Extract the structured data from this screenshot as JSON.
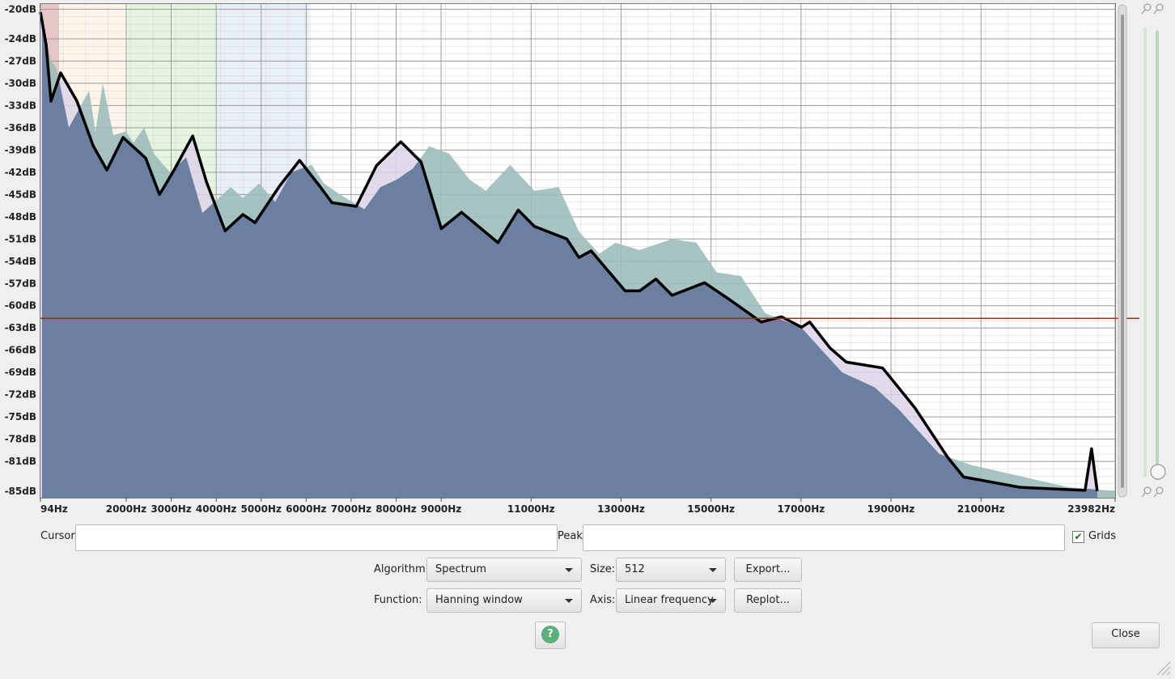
{
  "chart_data": {
    "type": "area",
    "xlim": [
      94,
      23982
    ],
    "ylim": [
      -85.9,
      -19.2
    ],
    "grid": true,
    "xticks": [
      {
        "value": 94,
        "label": "94Hz"
      },
      {
        "value": 2000,
        "label": "2000Hz"
      },
      {
        "value": 3000,
        "label": "3000Hz"
      },
      {
        "value": 4000,
        "label": "4000Hz"
      },
      {
        "value": 5000,
        "label": "5000Hz"
      },
      {
        "value": 6000,
        "label": "6000Hz"
      },
      {
        "value": 7000,
        "label": "7000Hz"
      },
      {
        "value": 8000,
        "label": "8000Hz"
      },
      {
        "value": 9000,
        "label": "9000Hz"
      },
      {
        "value": 11000,
        "label": "11000Hz"
      },
      {
        "value": 13000,
        "label": "13000Hz"
      },
      {
        "value": 15000,
        "label": "15000Hz"
      },
      {
        "value": 17000,
        "label": "17000Hz"
      },
      {
        "value": 19000,
        "label": "19000Hz"
      },
      {
        "value": 21000,
        "label": "21000Hz"
      },
      {
        "value": 23982,
        "label": "23982Hz"
      }
    ],
    "yticks": [
      {
        "value": -20,
        "label": "-20dB"
      },
      {
        "value": -24,
        "label": "-24dB"
      },
      {
        "value": -27,
        "label": "-27dB"
      },
      {
        "value": -30,
        "label": "-30dB"
      },
      {
        "value": -33,
        "label": "-33dB"
      },
      {
        "value": -36,
        "label": "-36dB"
      },
      {
        "value": -39,
        "label": "-39dB"
      },
      {
        "value": -42,
        "label": "-42dB"
      },
      {
        "value": -45,
        "label": "-45dB"
      },
      {
        "value": -48,
        "label": "-48dB"
      },
      {
        "value": -51,
        "label": "-51dB"
      },
      {
        "value": -54,
        "label": "-54dB"
      },
      {
        "value": -57,
        "label": "-57dB"
      },
      {
        "value": -60,
        "label": "-60dB"
      },
      {
        "value": -63,
        "label": "-63dB"
      },
      {
        "value": -66,
        "label": "-66dB"
      },
      {
        "value": -69,
        "label": "-69dB"
      },
      {
        "value": -72,
        "label": "-72dB"
      },
      {
        "value": -75,
        "label": "-75dB"
      },
      {
        "value": -78,
        "label": "-78dB"
      },
      {
        "value": -81,
        "label": "-81dB"
      },
      {
        "value": -85,
        "label": "-85dB"
      }
    ],
    "series": [
      {
        "color": "#9dbcbb",
        "x": [
          130,
          328,
          454,
          724,
          994,
          1174,
          1318,
          1480,
          1714,
          1984,
          2164,
          2398,
          2614,
          2974,
          3334,
          3694,
          4054,
          4324,
          4594,
          4954,
          5314,
          5674,
          6124,
          6394,
          6754,
          7294,
          7654,
          8014,
          8374,
          8734,
          9184,
          9634,
          9994,
          10534,
          11074,
          11614,
          12064,
          12514,
          12874,
          13414,
          14134,
          14674,
          15124,
          15664,
          16204,
          17014,
          17914,
          18634,
          19174,
          20074,
          20794,
          21874,
          22954,
          23982
        ],
        "values": [
          -21.0,
          -27.0,
          -28.0,
          -36.0,
          -33.0,
          -31.0,
          -36.5,
          -30.0,
          -37.0,
          -36.5,
          -38.0,
          -36.0,
          -39.5,
          -42.0,
          -40.0,
          -47.5,
          -45.5,
          -44.0,
          -45.5,
          -43.5,
          -46.0,
          -42.0,
          -41.0,
          -43.5,
          -45.0,
          -47.0,
          -44.0,
          -43.0,
          -41.5,
          -38.5,
          -39.5,
          -43.0,
          -44.5,
          -41.0,
          -44.5,
          -44.0,
          -50.0,
          -53.0,
          -51.5,
          -52.5,
          -51.0,
          -51.5,
          -55.5,
          -56.0,
          -61.0,
          -63.0,
          -69.0,
          -71.0,
          -74.0,
          -80.0,
          -81.5,
          -83.0,
          -84.5,
          -85.0
        ]
      },
      {
        "color": "#000000",
        "x": [
          94,
          220,
          328,
          544,
          904,
          1264,
          1570,
          1930,
          2434,
          2740,
          3064,
          3478,
          3784,
          4198,
          4594,
          4864,
          5404,
          5854,
          6304,
          6574,
          7114,
          7564,
          8104,
          8554,
          9004,
          9454,
          10264,
          10714,
          11074,
          11794,
          12064,
          12334,
          13090,
          13414,
          13774,
          14134,
          14854,
          15394,
          16114,
          16564,
          17014,
          17194,
          17644,
          18004,
          18814,
          19534,
          20254,
          20614,
          21874,
          23314,
          23458,
          23584
        ],
        "values": [
          -20.4,
          -24.8,
          -32.4,
          -28.6,
          -32.4,
          -38.4,
          -41.7,
          -37.3,
          -40.1,
          -45.0,
          -41.7,
          -37.1,
          -43.3,
          -49.9,
          -47.7,
          -48.8,
          -43.9,
          -40.4,
          -43.9,
          -46.1,
          -46.6,
          -41.1,
          -37.9,
          -40.6,
          -49.6,
          -47.4,
          -51.5,
          -47.1,
          -49.3,
          -51.0,
          -53.5,
          -52.6,
          -58.0,
          -58.0,
          -56.4,
          -58.6,
          -56.9,
          -59.1,
          -62.2,
          -61.5,
          -62.9,
          -62.2,
          -65.7,
          -67.6,
          -68.4,
          -73.8,
          -80.4,
          -83.1,
          -84.5,
          -84.9,
          -79.3,
          -85.0
        ]
      }
    ],
    "reference_line": {
      "value": -61.7,
      "color": "#b01c1c"
    }
  },
  "controls": {
    "cursor_label": "Cursor:",
    "peak_label": "Peak:",
    "grids_label": "Grids",
    "grids_checked": true,
    "algorithm_label": "Algorithm:",
    "algorithm": "Spectrum",
    "size_label": "Size:",
    "size": "512",
    "export": "Export...",
    "function_label": "Function:",
    "function": "Hanning window",
    "axis_label": "Axis:",
    "axis": "Linear frequency",
    "replot": "Replot...",
    "help": "?",
    "close": "Close"
  }
}
